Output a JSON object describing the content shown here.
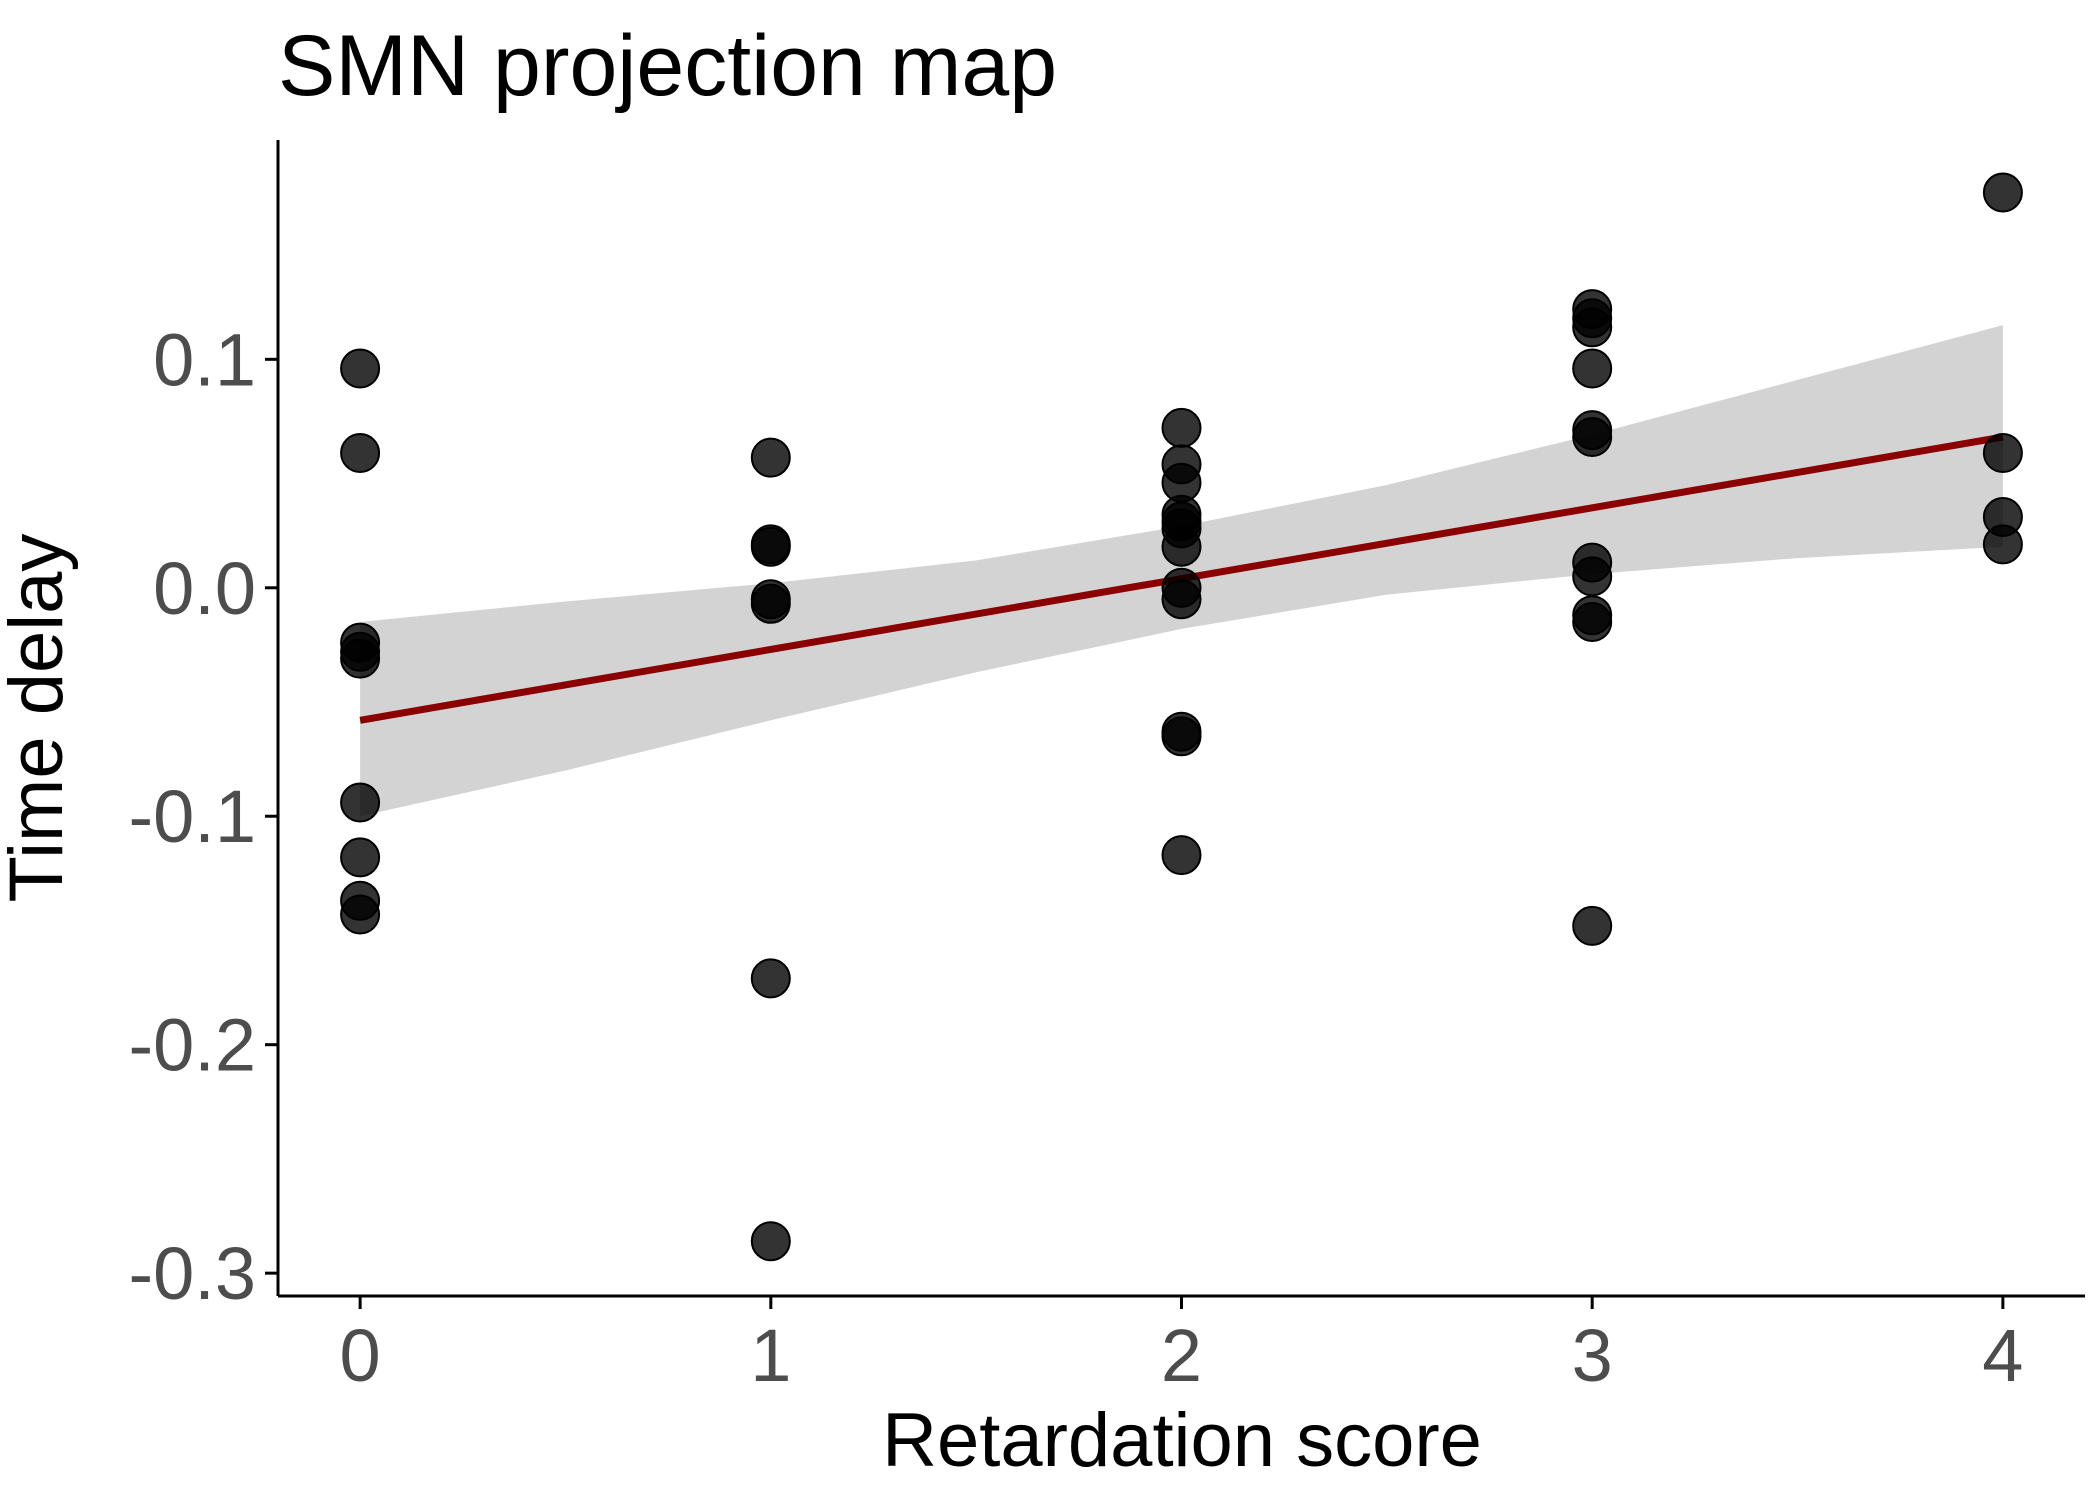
{
  "colors": {
    "points": "#000000",
    "fit_line": "#8b0000",
    "confidence_band": "#d3d3d3",
    "axis": "#000000",
    "tick_label": "#4d4d4d"
  },
  "chart_data": {
    "type": "scatter",
    "title": "SMN projection map",
    "xlabel": "Retardation score",
    "ylabel": "Time delay",
    "xlim": [
      -0.2,
      4.2
    ],
    "ylim": [
      -0.31,
      0.196
    ],
    "x_ticks": [
      0,
      1,
      2,
      3,
      4
    ],
    "x_tick_labels": [
      "0",
      "1",
      "2",
      "3",
      "4"
    ],
    "y_ticks": [
      -0.3,
      -0.2,
      -0.1,
      0.0,
      0.1
    ],
    "y_tick_labels": [
      "-0.3",
      "-0.2",
      "-0.1",
      "0.0",
      "0.1"
    ],
    "grid": false,
    "legend": "none",
    "points": [
      {
        "x": 0,
        "y": 0.096
      },
      {
        "x": 0,
        "y": 0.059
      },
      {
        "x": 0,
        "y": -0.024
      },
      {
        "x": 0,
        "y": -0.028
      },
      {
        "x": 0,
        "y": -0.031
      },
      {
        "x": 0,
        "y": -0.094
      },
      {
        "x": 0,
        "y": -0.118
      },
      {
        "x": 0,
        "y": -0.137
      },
      {
        "x": 0,
        "y": -0.143
      },
      {
        "x": 1,
        "y": 0.057
      },
      {
        "x": 1,
        "y": 0.019
      },
      {
        "x": 1,
        "y": 0.018
      },
      {
        "x": 1,
        "y": -0.005
      },
      {
        "x": 1,
        "y": -0.007
      },
      {
        "x": 1,
        "y": -0.171
      },
      {
        "x": 1,
        "y": -0.286
      },
      {
        "x": 2,
        "y": 0.07
      },
      {
        "x": 2,
        "y": 0.054
      },
      {
        "x": 2,
        "y": 0.046
      },
      {
        "x": 2,
        "y": 0.032
      },
      {
        "x": 2,
        "y": 0.029
      },
      {
        "x": 2,
        "y": 0.026
      },
      {
        "x": 2,
        "y": 0.018
      },
      {
        "x": 2,
        "y": 0.0
      },
      {
        "x": 2,
        "y": -0.005
      },
      {
        "x": 2,
        "y": -0.063
      },
      {
        "x": 2,
        "y": -0.065
      },
      {
        "x": 2,
        "y": -0.117
      },
      {
        "x": 3,
        "y": 0.122
      },
      {
        "x": 3,
        "y": 0.118
      },
      {
        "x": 3,
        "y": 0.114
      },
      {
        "x": 3,
        "y": 0.096
      },
      {
        "x": 3,
        "y": 0.069
      },
      {
        "x": 3,
        "y": 0.066
      },
      {
        "x": 3,
        "y": 0.011
      },
      {
        "x": 3,
        "y": 0.005
      },
      {
        "x": 3,
        "y": -0.012
      },
      {
        "x": 3,
        "y": -0.015
      },
      {
        "x": 3,
        "y": -0.148
      },
      {
        "x": 4,
        "y": 0.173
      },
      {
        "x": 4,
        "y": 0.059
      },
      {
        "x": 4,
        "y": 0.031
      },
      {
        "x": 4,
        "y": 0.019
      }
    ],
    "fit_line": {
      "x": [
        0,
        4
      ],
      "y": [
        -0.058,
        0.066
      ]
    },
    "confidence_band": {
      "x": [
        0,
        0.5,
        1,
        1.5,
        2,
        2.5,
        3,
        3.5,
        4
      ],
      "upper": [
        -0.015,
        -0.006,
        0.002,
        0.012,
        0.027,
        0.045,
        0.067,
        0.091,
        0.115
      ],
      "lower": [
        -0.1,
        -0.08,
        -0.058,
        -0.037,
        -0.018,
        -0.003,
        0.006,
        0.013,
        0.018
      ]
    }
  }
}
